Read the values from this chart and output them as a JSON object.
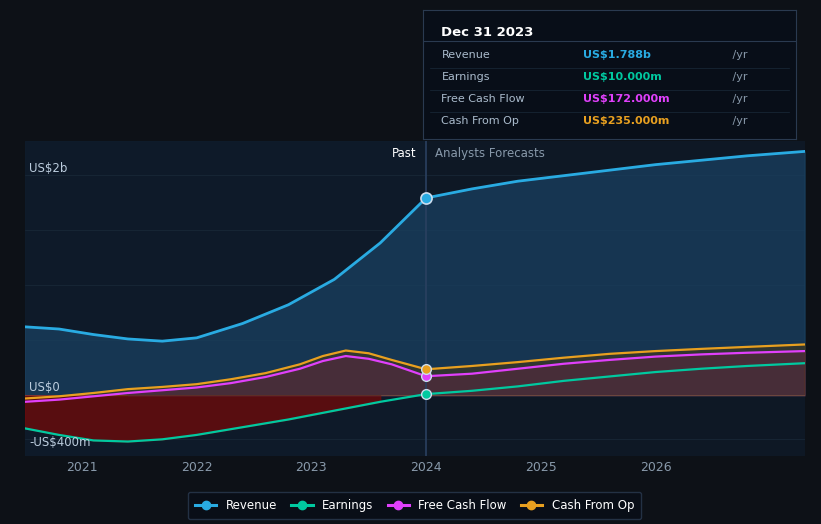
{
  "bg_color": "#0d1117",
  "plot_bg_color": "#0e1825",
  "grid_color": "#1a2a3a",
  "zero_line_color": "#ffffff",
  "divider_x": 2024.0,
  "ylabel_2b": "US$2b",
  "ylabel_0": "US$0",
  "ylabel_neg400": "-US$400m",
  "ylim": [
    -550,
    2300
  ],
  "xlim": [
    2020.5,
    2027.3
  ],
  "x_ticks": [
    2021,
    2022,
    2023,
    2024,
    2025,
    2026
  ],
  "revenue": {
    "color": "#29abe2",
    "fill_color": "#1a4060",
    "fill_alpha": 0.75,
    "label": "Revenue",
    "x": [
      2020.5,
      2020.8,
      2021.1,
      2021.4,
      2021.7,
      2022.0,
      2022.4,
      2022.8,
      2023.2,
      2023.6,
      2024.0,
      2024.4,
      2024.8,
      2025.2,
      2025.6,
      2026.0,
      2026.4,
      2026.8,
      2027.3
    ],
    "y": [
      620,
      600,
      550,
      510,
      490,
      520,
      650,
      820,
      1050,
      1380,
      1788,
      1870,
      1940,
      1990,
      2040,
      2090,
      2130,
      2170,
      2210
    ]
  },
  "earnings": {
    "color": "#00c9a0",
    "label": "Earnings",
    "x": [
      2020.5,
      2020.8,
      2021.1,
      2021.4,
      2021.7,
      2022.0,
      2022.4,
      2022.8,
      2023.2,
      2023.6,
      2024.0,
      2024.4,
      2024.8,
      2025.2,
      2025.6,
      2026.0,
      2026.4,
      2026.8,
      2027.3
    ],
    "y": [
      -300,
      -360,
      -410,
      -420,
      -400,
      -360,
      -290,
      -220,
      -140,
      -60,
      10,
      40,
      80,
      130,
      170,
      210,
      240,
      265,
      290
    ]
  },
  "fcf": {
    "color": "#e040fb",
    "fill_color": "#5a1a6a",
    "fill_alpha": 0.55,
    "label": "Free Cash Flow",
    "x": [
      2020.5,
      2020.8,
      2021.1,
      2021.4,
      2021.7,
      2022.0,
      2022.3,
      2022.6,
      2022.9,
      2023.1,
      2023.3,
      2023.5,
      2023.7,
      2024.0,
      2024.4,
      2024.8,
      2025.2,
      2025.6,
      2026.0,
      2026.4,
      2026.8,
      2027.3
    ],
    "y": [
      -60,
      -40,
      -10,
      20,
      45,
      70,
      110,
      165,
      240,
      310,
      355,
      330,
      280,
      172,
      195,
      240,
      285,
      320,
      350,
      370,
      385,
      400
    ]
  },
  "cashop": {
    "color": "#e8a020",
    "fill_color": "#5a3a00",
    "fill_alpha": 0.4,
    "label": "Cash From Op",
    "x": [
      2020.5,
      2020.8,
      2021.1,
      2021.4,
      2021.7,
      2022.0,
      2022.3,
      2022.6,
      2022.9,
      2023.1,
      2023.3,
      2023.5,
      2023.7,
      2024.0,
      2024.4,
      2024.8,
      2025.2,
      2025.6,
      2026.0,
      2026.4,
      2026.8,
      2027.3
    ],
    "y": [
      -30,
      -10,
      20,
      55,
      75,
      100,
      145,
      200,
      280,
      355,
      405,
      380,
      320,
      235,
      265,
      300,
      340,
      375,
      400,
      420,
      438,
      460
    ]
  },
  "tooltip": {
    "title": "Dec 31 2023",
    "rows": [
      {
        "label": "Revenue",
        "value": "US$1.788b",
        "unit": " /yr",
        "color": "#29abe2"
      },
      {
        "label": "Earnings",
        "value": "US$10.000m",
        "unit": " /yr",
        "color": "#00c9a0"
      },
      {
        "label": "Free Cash Flow",
        "value": "US$172.000m",
        "unit": " /yr",
        "color": "#e040fb"
      },
      {
        "label": "Cash From Op",
        "value": "US$235.000m",
        "unit": " /yr",
        "color": "#e8a020"
      }
    ]
  },
  "legend": [
    {
      "label": "Revenue",
      "color": "#29abe2"
    },
    {
      "label": "Earnings",
      "color": "#00c9a0"
    },
    {
      "label": "Free Cash Flow",
      "color": "#e040fb"
    },
    {
      "label": "Cash From Op",
      "color": "#e8a020"
    }
  ],
  "marker_x": 2024.0,
  "marker_revenue_y": 1788,
  "marker_earnings_y": 10,
  "marker_fcf_y": 172,
  "marker_cashop_y": 235,
  "past_label": "Past",
  "forecast_label": "Analysts Forecasts"
}
